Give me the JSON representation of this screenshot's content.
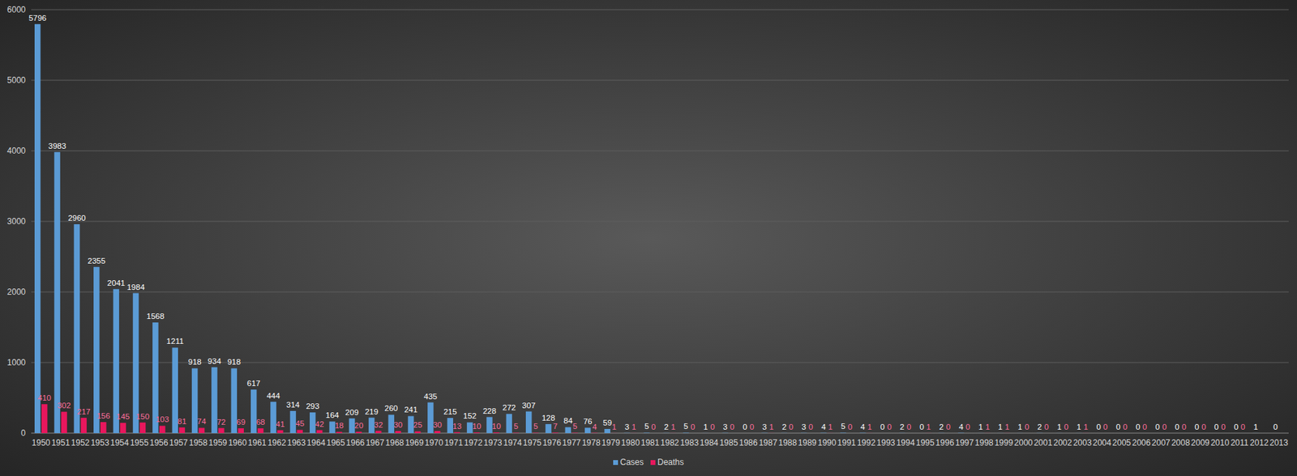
{
  "chart_data": {
    "type": "bar",
    "categories": [
      "1950",
      "1951",
      "1952",
      "1953",
      "1954",
      "1955",
      "1956",
      "1957",
      "1958",
      "1959",
      "1960",
      "1961",
      "1962",
      "1963",
      "1964",
      "1965",
      "1966",
      "1967",
      "1968",
      "1969",
      "1970",
      "1971",
      "1972",
      "1973",
      "1974",
      "1975",
      "1976",
      "1977",
      "1978",
      "1979",
      "1980",
      "1981",
      "1982",
      "1983",
      "1984",
      "1985",
      "1986",
      "1987",
      "1988",
      "1989",
      "1990",
      "1991",
      "1992",
      "1993",
      "1994",
      "1995",
      "1996",
      "1997",
      "1998",
      "1999",
      "2000",
      "2001",
      "2002",
      "2003",
      "2004",
      "2005",
      "2006",
      "2007",
      "2008",
      "2009",
      "2010",
      "2011",
      "2012",
      "2013"
    ],
    "series": [
      {
        "name": "Cases",
        "color": "#5b9bd5",
        "values": [
          5796,
          3983,
          2960,
          2355,
          2041,
          1984,
          1568,
          1211,
          918,
          934,
          918,
          617,
          444,
          314,
          293,
          164,
          209,
          219,
          260,
          241,
          435,
          215,
          152,
          228,
          272,
          307,
          128,
          84,
          76,
          59,
          3,
          5,
          2,
          5,
          1,
          3,
          0,
          3,
          2,
          3,
          4,
          5,
          4,
          0,
          2,
          0,
          2,
          4,
          1,
          1,
          1,
          2,
          1,
          1,
          0,
          0,
          0,
          0,
          0,
          0,
          0,
          0,
          1,
          0
        ]
      },
      {
        "name": "Deaths",
        "color": "#e8175d",
        "values": [
          410,
          302,
          217,
          156,
          145,
          150,
          103,
          81,
          74,
          72,
          69,
          68,
          41,
          45,
          42,
          18,
          20,
          32,
          30,
          25,
          30,
          13,
          10,
          10,
          5,
          5,
          7,
          5,
          4,
          1,
          1,
          0,
          1,
          0,
          0,
          0,
          0,
          1,
          0,
          0,
          1,
          0,
          1,
          0,
          0,
          1,
          0,
          0,
          1,
          1,
          0,
          0,
          0,
          1,
          0,
          0,
          0,
          0,
          0,
          0,
          0,
          0,
          null,
          null
        ]
      }
    ],
    "ylim": [
      0,
      6000
    ],
    "yticks": [
      0,
      1000,
      2000,
      3000,
      4000,
      5000,
      6000
    ],
    "grid": true,
    "data_labels": true,
    "legend": "bottom"
  }
}
